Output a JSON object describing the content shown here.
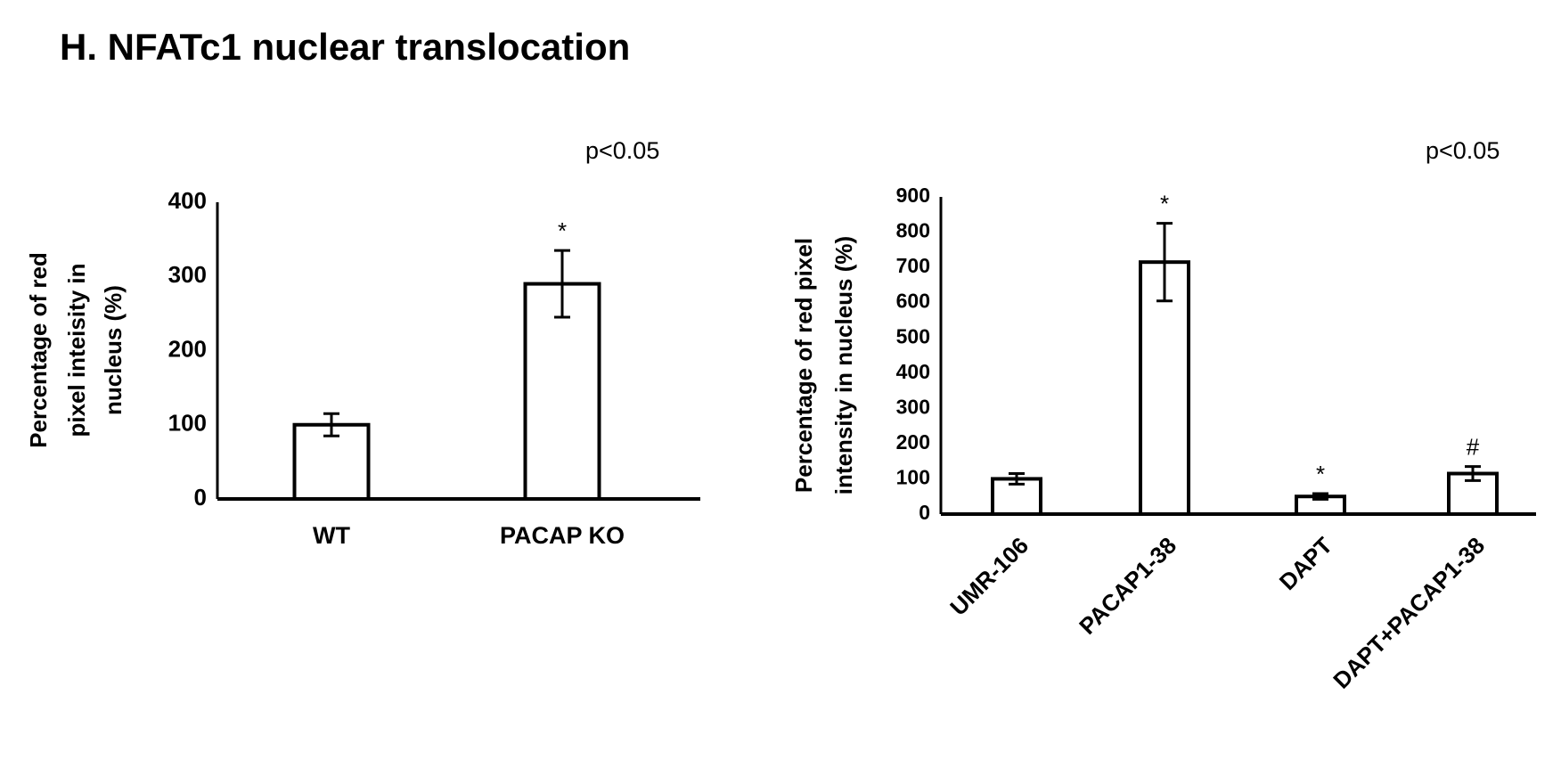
{
  "title": "H. NFATc1 nuclear translocation",
  "chart_data": [
    {
      "type": "bar",
      "note": "p<0.05",
      "ylabel": [
        "Percentage of red",
        "pixel inteisity in",
        "nucleus (%)"
      ],
      "categories": [
        "WT",
        "PACAP KO"
      ],
      "values": [
        100,
        290
      ],
      "errors": [
        15,
        45
      ],
      "bar_labels": [
        null,
        "*"
      ],
      "color": "#ffffff",
      "edgecolor": "#000000",
      "ylim": [
        0,
        400
      ],
      "yticks": [
        0,
        100,
        200,
        300,
        400
      ],
      "grid": false
    },
    {
      "type": "bar",
      "note": "p<0.05",
      "ylabel": [
        "Percentage of red pixel",
        "intensity in nucleus (%)"
      ],
      "categories": [
        "UMR-106",
        "PACAP1-38",
        "DAPT",
        "DAPT+PACAP1-38"
      ],
      "values": [
        100,
        715,
        50,
        115
      ],
      "errors": [
        15,
        110,
        8,
        20
      ],
      "bar_labels": [
        null,
        "*",
        "*",
        "#"
      ],
      "color": "#ffffff",
      "edgecolor": "#000000",
      "ylim": [
        0,
        900
      ],
      "yticks": [
        0,
        100,
        200,
        300,
        400,
        500,
        600,
        700,
        800,
        900
      ],
      "grid": false
    }
  ]
}
